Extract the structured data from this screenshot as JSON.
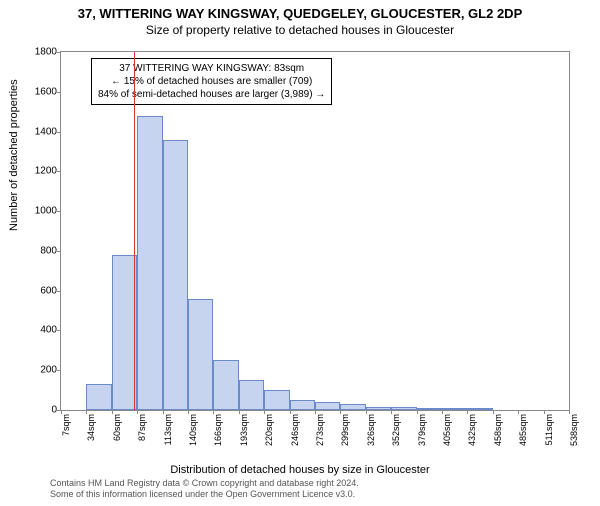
{
  "header": {
    "address": "37, WITTERING WAY KINGSWAY, QUEDGELEY, GLOUCESTER, GL2 2DP",
    "subtitle": "Size of property relative to detached houses in Gloucester"
  },
  "chart": {
    "type": "histogram",
    "ylabel": "Number of detached properties",
    "xlabel": "Distribution of detached houses by size in Gloucester",
    "ylim": [
      0,
      1800
    ],
    "yticks": [
      0,
      200,
      400,
      600,
      800,
      1000,
      1200,
      1400,
      1600,
      1800
    ],
    "xticks_labels": [
      "7sqm",
      "34sqm",
      "60sqm",
      "87sqm",
      "113sqm",
      "140sqm",
      "166sqm",
      "193sqm",
      "220sqm",
      "246sqm",
      "273sqm",
      "299sqm",
      "326sqm",
      "352sqm",
      "379sqm",
      "405sqm",
      "432sqm",
      "458sqm",
      "485sqm",
      "511sqm",
      "538sqm"
    ],
    "bars": [
      {
        "x_index": 0,
        "value": 0
      },
      {
        "x_index": 1,
        "value": 130
      },
      {
        "x_index": 2,
        "value": 780
      },
      {
        "x_index": 3,
        "value": 1480
      },
      {
        "x_index": 4,
        "value": 1360
      },
      {
        "x_index": 5,
        "value": 560
      },
      {
        "x_index": 6,
        "value": 250
      },
      {
        "x_index": 7,
        "value": 150
      },
      {
        "x_index": 8,
        "value": 100
      },
      {
        "x_index": 9,
        "value": 50
      },
      {
        "x_index": 10,
        "value": 40
      },
      {
        "x_index": 11,
        "value": 30
      },
      {
        "x_index": 12,
        "value": 15
      },
      {
        "x_index": 13,
        "value": 15
      },
      {
        "x_index": 14,
        "value": 5
      },
      {
        "x_index": 15,
        "value": 10
      },
      {
        "x_index": 16,
        "value": 5
      },
      {
        "x_index": 17,
        "value": 0
      },
      {
        "x_index": 18,
        "value": 0
      },
      {
        "x_index": 19,
        "value": 0
      }
    ],
    "bar_color": "#c6d4f0",
    "bar_border": "#6a8bc9",
    "background_color": "#ffffff",
    "axis_color": "#888888",
    "marker": {
      "position_sqm": 83,
      "color": "#e03030"
    },
    "annotation": {
      "line1": "37 WITTERING WAY KINGSWAY: 83sqm",
      "line2": "← 15% of detached houses are smaller (709)",
      "line3": "84% of semi-detached houses are larger (3,989) →",
      "box_border": "#000000",
      "box_bg": "#ffffff",
      "fontsize": 10
    }
  },
  "footer": {
    "line1": "Contains HM Land Registry data © Crown copyright and database right 2024.",
    "line2": "Some of this information licensed under the Open Government Licence v3.0."
  }
}
